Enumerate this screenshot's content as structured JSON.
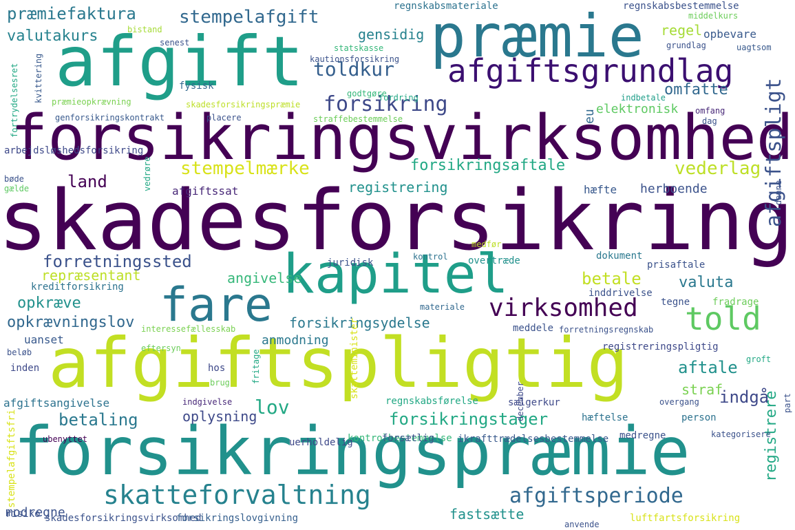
{
  "words": [
    {
      "text": "skadesforsikring",
      "color": "#440154"
    },
    {
      "text": "forsikringsvirksomhed",
      "color": "#440154"
    },
    {
      "text": "afgiftspligtig",
      "color": "#c2df23"
    },
    {
      "text": "forsikringspræmie",
      "color": "#21918c"
    },
    {
      "text": "afgift",
      "color": "#1f9e89"
    },
    {
      "text": "præmie",
      "color": "#2a788e"
    },
    {
      "text": "kapitel",
      "color": "#1f9e89"
    },
    {
      "text": "fare",
      "color": "#2a788e"
    },
    {
      "text": "afgiftsgrundlag",
      "color": "#3b0f70"
    },
    {
      "text": "told",
      "color": "#5ec962"
    },
    {
      "text": "skatteforvaltning",
      "color": "#26828e"
    },
    {
      "text": "afgiftsperiode",
      "color": "#31688e"
    },
    {
      "text": "virksomhed",
      "color": "#440154"
    },
    {
      "text": "afgiftspligt",
      "color": "#3b528b"
    },
    {
      "text": "forsikring",
      "color": "#3e4989"
    },
    {
      "text": "toldkur",
      "color": "#355f8d"
    },
    {
      "text": "stempelafgift",
      "color": "#31688e"
    },
    {
      "text": "præmiefaktura",
      "color": "#2a788e"
    },
    {
      "text": "valutakurs",
      "color": "#26828e"
    },
    {
      "text": "gensidig",
      "color": "#26828e"
    },
    {
      "text": "regel",
      "color": "#a5db36"
    },
    {
      "text": "opbevare",
      "color": "#38598c"
    },
    {
      "text": "omfatte",
      "color": "#31688e"
    },
    {
      "text": "elektronisk",
      "color": "#5ec962"
    },
    {
      "text": "stempelmærke",
      "color": "#d8e219"
    },
    {
      "text": "forsikringsaftale",
      "color": "#22a884"
    },
    {
      "text": "vederlag",
      "color": "#bddf26"
    },
    {
      "text": "land",
      "color": "#440154"
    },
    {
      "text": "afgiftssat",
      "color": "#482878"
    },
    {
      "text": "registrering",
      "color": "#21918c"
    },
    {
      "text": "hæfte",
      "color": "#38588c"
    },
    {
      "text": "herboende",
      "color": "#3b528b"
    },
    {
      "text": "forretningssted",
      "color": "#3b528b"
    },
    {
      "text": "repræsentant",
      "color": "#bddf26"
    },
    {
      "text": "angivelse",
      "color": "#35b779"
    },
    {
      "text": "betale",
      "color": "#c2df23"
    },
    {
      "text": "valuta",
      "color": "#2a788e"
    },
    {
      "text": "opkræve",
      "color": "#21918c"
    },
    {
      "text": "opkrævningslov",
      "color": "#31688e"
    },
    {
      "text": "forsikringsydelse",
      "color": "#2a788e"
    },
    {
      "text": "anmodning",
      "color": "#2a788e"
    },
    {
      "text": "aftale",
      "color": "#21918c"
    },
    {
      "text": "straf",
      "color": "#7ad151"
    },
    {
      "text": "indgå",
      "color": "#3e4989"
    },
    {
      "text": "lov",
      "color": "#22a884"
    },
    {
      "text": "betaling",
      "color": "#2a788e"
    },
    {
      "text": "forsikringstager",
      "color": "#22a884"
    },
    {
      "text": "oplysning",
      "color": "#3e4989"
    },
    {
      "text": "registrere",
      "color": "#22a884"
    },
    {
      "text": "fastsætte",
      "color": "#21918c"
    },
    {
      "text": "modregne",
      "color": "#3b528b"
    },
    {
      "text": "uanset",
      "color": "#38598c"
    },
    {
      "text": "afgiftsangivelse",
      "color": "#2c728e"
    },
    {
      "text": "regnskabsførelse",
      "color": "#22a884"
    },
    {
      "text": "hæftelse",
      "color": "#2c728e"
    },
    {
      "text": "person",
      "color": "#2c728e"
    },
    {
      "text": "medregne",
      "color": "#3b528b"
    },
    {
      "text": "kontrolbestemmelse",
      "color": "#35b779"
    },
    {
      "text": "ikrafttrædelsesbestemmelse",
      "color": "#38598c"
    },
    {
      "text": "luftfartsforsikring",
      "color": "#d8e219"
    },
    {
      "text": "skadesforsikringsvirksomhed",
      "color": "#3b528b"
    },
    {
      "text": "forsikringslovgivning",
      "color": "#355f8d"
    },
    {
      "text": "risiko",
      "color": "#3b528b"
    },
    {
      "text": "regnskabsmateriale",
      "color": "#2c728e"
    },
    {
      "text": "regnskabsbestemmelse",
      "color": "#3b528b"
    },
    {
      "text": "middelkurs",
      "color": "#6ccd5a"
    },
    {
      "text": "grundlag",
      "color": "#3b528b"
    },
    {
      "text": "uagtsom",
      "color": "#38598c"
    },
    {
      "text": "statskasse",
      "color": "#35b779"
    },
    {
      "text": "kautionsforsikring",
      "color": "#3b528b"
    },
    {
      "text": "fysisk",
      "color": "#31688e"
    },
    {
      "text": "godtgøre",
      "color": "#35b779"
    },
    {
      "text": "fordring",
      "color": "#22a884"
    },
    {
      "text": "indbetale",
      "color": "#1f9e89"
    },
    {
      "text": "omfang",
      "color": "#482878"
    },
    {
      "text": "dag",
      "color": "#3b528b"
    },
    {
      "text": "kvittering",
      "color": "#38598c"
    },
    {
      "text": "præmieopkrævning",
      "color": "#7ad151"
    },
    {
      "text": "skadesforsikringspræmie",
      "color": "#bddf26"
    },
    {
      "text": "genforsikringskontrakt",
      "color": "#38598c"
    },
    {
      "text": "placere",
      "color": "#3b528b"
    },
    {
      "text": "straffebestemmelse",
      "color": "#6ccd5a"
    },
    {
      "text": "arbejdsløshedsforsikring",
      "color": "#3e4989"
    },
    {
      "text": "eu",
      "color": "#31688e"
    },
    {
      "text": "juridisk",
      "color": "#3b528b"
    },
    {
      "text": "kontrol",
      "color": "#2c728e"
    },
    {
      "text": "overtræde",
      "color": "#21918c"
    },
    {
      "text": "dokument",
      "color": "#2a788e"
    },
    {
      "text": "prisaftale",
      "color": "#3b528b"
    },
    {
      "text": "kreditforsikring",
      "color": "#2c728e"
    },
    {
      "text": "inddrivelse",
      "color": "#3b528b"
    },
    {
      "text": "tegne",
      "color": "#3b528b"
    },
    {
      "text": "fradrage",
      "color": "#6ccd5a"
    },
    {
      "text": "materiale",
      "color": "#31688e"
    },
    {
      "text": "interessefællesskab",
      "color": "#7ad151"
    },
    {
      "text": "meddele",
      "color": "#3b528b"
    },
    {
      "text": "forretningsregnskab",
      "color": "#3b528b"
    },
    {
      "text": "registreringspligtig",
      "color": "#3e4989"
    },
    {
      "text": "eftersyn",
      "color": "#6ccd5a"
    },
    {
      "text": "beløb",
      "color": "#3b528b"
    },
    {
      "text": "inden",
      "color": "#3e4989"
    },
    {
      "text": "hos",
      "color": "#3e4989"
    },
    {
      "text": "brug",
      "color": "#6ccd5a"
    },
    {
      "text": "indgivelse",
      "color": "#482878"
    },
    {
      "text": "sælgerkur",
      "color": "#3e4989"
    },
    {
      "text": "overgang",
      "color": "#3b528b"
    },
    {
      "text": "forsætlig",
      "color": "#3b528b"
    },
    {
      "text": "uerholdelig",
      "color": "#3e4989"
    },
    {
      "text": "ubenyttet",
      "color": "#440154"
    },
    {
      "text": "kategorisere",
      "color": "#3b528b"
    },
    {
      "text": "anvende",
      "color": "#3b528b"
    },
    {
      "text": "senest",
      "color": "#3b528b"
    },
    {
      "text": "bistand",
      "color": "#a5db36"
    },
    {
      "text": "bøde",
      "color": "#3b528b"
    },
    {
      "text": "gælde",
      "color": "#5ec962"
    },
    {
      "text": "vedrøre",
      "color": "#22a884"
    },
    {
      "text": "groft",
      "color": "#22a884"
    },
    {
      "text": "danne",
      "color": "#3b528b"
    },
    {
      "text": "medfør",
      "color": "#bddf26"
    },
    {
      "text": "december",
      "color": "#3e4989"
    },
    {
      "text": "fritage",
      "color": "#22a884"
    },
    {
      "text": "skatteminister",
      "color": "#d8e219"
    },
    {
      "text": "stempelafgiftsfri",
      "color": "#d8e219"
    },
    {
      "text": "fortrydelsesret",
      "color": "#22a884"
    },
    {
      "text": "part",
      "color": "#3b528b"
    }
  ]
}
